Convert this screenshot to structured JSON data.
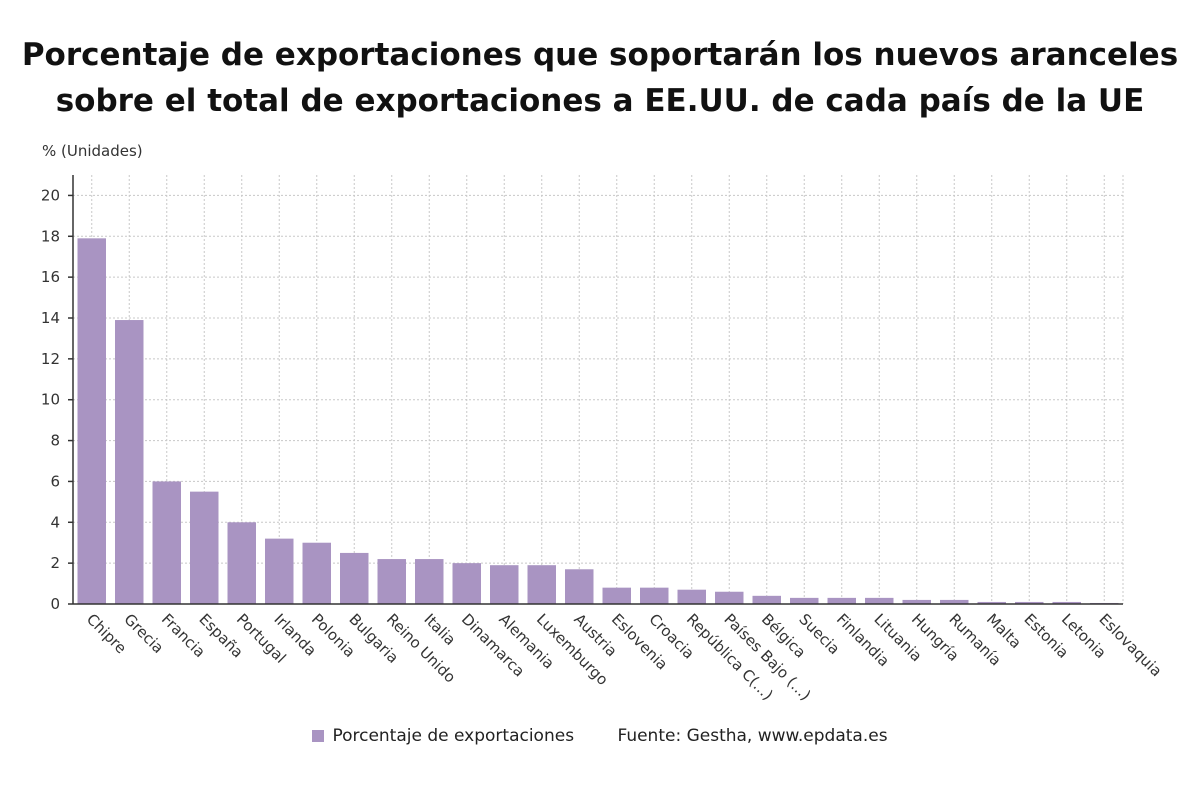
{
  "chart_data": {
    "type": "bar",
    "title_lines": [
      "Porcentaje de exportaciones que soportarán los nuevos aranceles",
      "sobre el total de exportaciones a EE.UU. de cada país de la UE"
    ],
    "ylabel": "% (Unidades)",
    "xlabel": "",
    "ylim": [
      0,
      21
    ],
    "yticks": [
      0,
      2,
      4,
      6,
      8,
      10,
      12,
      14,
      16,
      18,
      20
    ],
    "grid": true,
    "legend_placement": "bottom",
    "categories": [
      "Chipre",
      "Grecia",
      "Francia",
      "España",
      "Portugal",
      "Irlanda",
      "Polonia",
      "Bulgaria",
      "Reino Unido",
      "Italia",
      "Dinamarca",
      "Alemania",
      "Luxemburgo",
      "Austria",
      "Eslovenia",
      "Croacia",
      "República C(...)",
      "Países Bajo (...)",
      "Bélgica",
      "Suecia",
      "Finlandia",
      "Lituania",
      "Hungría",
      "Rumanía",
      "Malta",
      "Estonia",
      "Letonia",
      "Eslovaquia"
    ],
    "series": [
      {
        "name": "Porcentaje de exportaciones",
        "color": "#a994c2",
        "values": [
          17.9,
          13.9,
          6.0,
          5.5,
          4.0,
          3.2,
          3.0,
          2.5,
          2.2,
          2.2,
          2.0,
          1.9,
          1.9,
          1.7,
          0.8,
          0.8,
          0.7,
          0.6,
          0.4,
          0.3,
          0.3,
          0.3,
          0.2,
          0.2,
          0.1,
          0.1,
          0.1,
          0.05
        ]
      }
    ]
  },
  "legend": {
    "label": "Porcentaje de exportaciones",
    "source": "Fuente: Gestha, www.epdata.es"
  }
}
